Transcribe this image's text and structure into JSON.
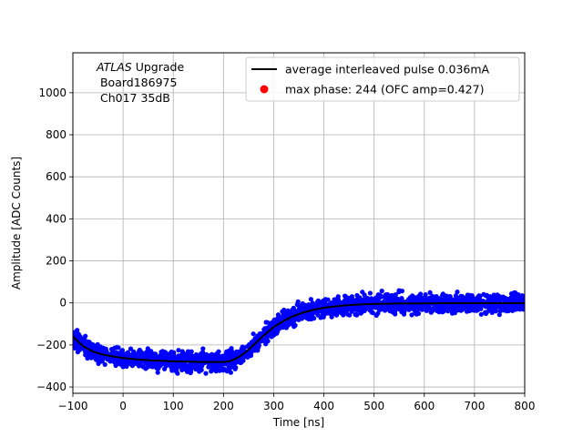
{
  "chart_data": {
    "type": "scatter",
    "xlabel": "Time [ns]",
    "ylabel": "Amplitude [ADC Counts]",
    "xlim": [
      -100,
      800
    ],
    "ylim": [
      -430,
      1190
    ],
    "x_ticks": [
      -100,
      0,
      100,
      200,
      300,
      400,
      500,
      600,
      700,
      800
    ],
    "y_ticks": [
      -400,
      -200,
      0,
      200,
      400,
      600,
      800,
      1000
    ],
    "grid": true,
    "legend_position": "top-right",
    "annotation": {
      "line1_italic": "ATLAS",
      "line1_rest": " Upgrade",
      "line2": " Board186975",
      "line3": " Ch017 35dB"
    },
    "legend": [
      {
        "label": "average interleaved pulse 0.036mA",
        "marker": "line",
        "color": "#000000"
      },
      {
        "label": "max phase: 244 (OFC amp=0.427)",
        "marker": "dot",
        "color": "#ff0000"
      }
    ],
    "series": [
      {
        "name": "average interleaved pulse 0.036mA",
        "kind": "line",
        "color": "#000000",
        "x": [
          -100,
          -80,
          -60,
          -40,
          -20,
          0,
          20,
          40,
          60,
          80,
          100,
          120,
          140,
          160,
          180,
          200,
          210,
          220,
          230,
          240,
          250,
          260,
          270,
          280,
          290,
          300,
          320,
          340,
          360,
          380,
          400,
          420,
          440,
          460,
          480,
          500,
          550,
          600,
          650,
          700,
          750,
          800
        ],
        "y": [
          -160,
          -205,
          -232,
          -246,
          -255,
          -262,
          -267,
          -271,
          -274,
          -276,
          -278,
          -279,
          -280,
          -281,
          -281,
          -281,
          -278,
          -270,
          -258,
          -242,
          -222,
          -200,
          -178,
          -156,
          -135,
          -115,
          -85,
          -62,
          -45,
          -32,
          -23,
          -17,
          -12,
          -9,
          -7,
          -5,
          -3,
          -2,
          -1,
          -1,
          -1,
          -1
        ]
      },
      {
        "name": "samples",
        "kind": "scatter",
        "color": "#0000ff",
        "x_range": [
          -100,
          800
        ],
        "noise_ADC": 22,
        "count": 2300
      }
    ]
  }
}
